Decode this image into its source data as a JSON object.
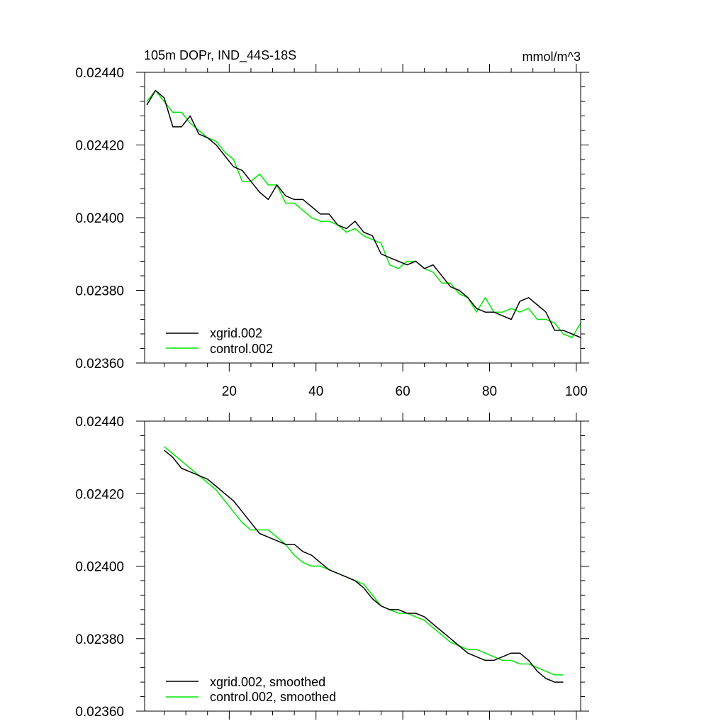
{
  "chart_data": [
    {
      "type": "line",
      "title": "105m DOPr, IND_44S-18S",
      "units": "mmol/m^3",
      "xlabel": "",
      "ylabel": "",
      "xlim": [
        0.5,
        101
      ],
      "ylim": [
        0.0236,
        0.0244
      ],
      "x_ticks": [
        "20",
        "40",
        "60",
        "80",
        "100"
      ],
      "y_ticks": [
        "0.02360",
        "0.02380",
        "0.02400",
        "0.02420",
        "0.02440"
      ],
      "grid": false,
      "legend_position": "bottom-left",
      "series": [
        {
          "name": "xgrid.002",
          "color": "#000000",
          "x": [
            1,
            3,
            5,
            7,
            9,
            11,
            13,
            15,
            17,
            19,
            21,
            23,
            25,
            27,
            29,
            31,
            33,
            35,
            37,
            39,
            41,
            43,
            45,
            47,
            49,
            51,
            53,
            55,
            57,
            59,
            61,
            63,
            65,
            67,
            69,
            71,
            73,
            75,
            77,
            79,
            81,
            83,
            85,
            87,
            89,
            91,
            93,
            95,
            97,
            99,
            101
          ],
          "values": [
            0.02431,
            0.02435,
            0.02433,
            0.02425,
            0.02425,
            0.02428,
            0.02423,
            0.02422,
            0.0242,
            0.02417,
            0.02414,
            0.02413,
            0.0241,
            0.02407,
            0.02405,
            0.02409,
            0.02406,
            0.02405,
            0.02405,
            0.02403,
            0.02401,
            0.02401,
            0.02398,
            0.02397,
            0.02399,
            0.02396,
            0.02395,
            0.0239,
            0.02389,
            0.02388,
            0.02387,
            0.02388,
            0.02386,
            0.02387,
            0.02384,
            0.02381,
            0.0238,
            0.02378,
            0.02375,
            0.02374,
            0.02374,
            0.02373,
            0.02372,
            0.02377,
            0.02378,
            0.02376,
            0.02374,
            0.02369,
            0.02369,
            0.02368,
            0.02367
          ]
        },
        {
          "name": "control.002",
          "color": "#00e800",
          "x": [
            1,
            3,
            5,
            7,
            9,
            11,
            13,
            15,
            17,
            19,
            21,
            23,
            25,
            27,
            29,
            31,
            33,
            35,
            37,
            39,
            41,
            43,
            45,
            47,
            49,
            51,
            53,
            55,
            57,
            59,
            61,
            63,
            65,
            67,
            69,
            71,
            73,
            75,
            77,
            79,
            81,
            83,
            85,
            87,
            89,
            91,
            93,
            95,
            97,
            99,
            101
          ],
          "values": [
            0.02432,
            0.02435,
            0.02432,
            0.02429,
            0.02429,
            0.02426,
            0.02424,
            0.02422,
            0.02421,
            0.02418,
            0.02416,
            0.0241,
            0.0241,
            0.02412,
            0.02409,
            0.02409,
            0.02404,
            0.02404,
            0.02402,
            0.024,
            0.02399,
            0.02399,
            0.02398,
            0.02396,
            0.02397,
            0.02395,
            0.02394,
            0.02393,
            0.02387,
            0.02386,
            0.02388,
            0.02388,
            0.02386,
            0.02385,
            0.02382,
            0.02382,
            0.02379,
            0.02378,
            0.02374,
            0.02378,
            0.02374,
            0.02374,
            0.02375,
            0.02374,
            0.02375,
            0.02372,
            0.02372,
            0.02371,
            0.02368,
            0.02367,
            0.02371
          ]
        }
      ]
    },
    {
      "type": "line",
      "title": "",
      "xlabel": "",
      "ylabel": "",
      "xlim": [
        0.5,
        101
      ],
      "ylim": [
        0.0236,
        0.0244
      ],
      "x_ticks": [],
      "y_ticks": [
        "0.02360",
        "0.02380",
        "0.02400",
        "0.02420",
        "0.02440"
      ],
      "grid": false,
      "legend_position": "bottom-left",
      "series": [
        {
          "name": "xgrid.002, smoothed",
          "color": "#000000",
          "x": [
            5,
            7,
            9,
            11,
            13,
            15,
            17,
            19,
            21,
            23,
            25,
            27,
            29,
            31,
            33,
            35,
            37,
            39,
            41,
            43,
            45,
            47,
            49,
            51,
            53,
            55,
            57,
            59,
            61,
            63,
            65,
            67,
            69,
            71,
            73,
            75,
            77,
            79,
            81,
            83,
            85,
            87,
            89,
            91,
            93,
            95,
            97
          ],
          "values": [
            0.02432,
            0.0243,
            0.02427,
            0.02426,
            0.02425,
            0.02424,
            0.02422,
            0.0242,
            0.02418,
            0.02415,
            0.02412,
            0.02409,
            0.02408,
            0.02407,
            0.02406,
            0.02406,
            0.02404,
            0.02403,
            0.02401,
            0.02399,
            0.02398,
            0.02397,
            0.02396,
            0.02394,
            0.02391,
            0.02389,
            0.02388,
            0.02388,
            0.02387,
            0.02387,
            0.02386,
            0.02384,
            0.02382,
            0.0238,
            0.02378,
            0.02376,
            0.02375,
            0.02374,
            0.02374,
            0.02375,
            0.02376,
            0.02376,
            0.02374,
            0.02371,
            0.02369,
            0.02368,
            0.02368
          ]
        },
        {
          "name": "control.002, smoothed",
          "color": "#00e800",
          "x": [
            5,
            7,
            9,
            11,
            13,
            15,
            17,
            19,
            21,
            23,
            25,
            27,
            29,
            31,
            33,
            35,
            37,
            39,
            41,
            43,
            45,
            47,
            49,
            51,
            53,
            55,
            57,
            59,
            61,
            63,
            65,
            67,
            69,
            71,
            73,
            75,
            77,
            79,
            81,
            83,
            85,
            87,
            89,
            91,
            93,
            95,
            97
          ],
          "values": [
            0.02433,
            0.02431,
            0.02429,
            0.02427,
            0.02425,
            0.02423,
            0.02421,
            0.02418,
            0.02415,
            0.02412,
            0.0241,
            0.0241,
            0.0241,
            0.02408,
            0.02406,
            0.02403,
            0.02401,
            0.024,
            0.024,
            0.02399,
            0.02398,
            0.02397,
            0.02396,
            0.02395,
            0.02392,
            0.02389,
            0.02388,
            0.02387,
            0.02387,
            0.02386,
            0.02385,
            0.02383,
            0.02381,
            0.02379,
            0.02378,
            0.02377,
            0.02377,
            0.02376,
            0.02375,
            0.02374,
            0.02374,
            0.02373,
            0.02373,
            0.02372,
            0.02371,
            0.0237,
            0.0237
          ]
        }
      ]
    }
  ]
}
